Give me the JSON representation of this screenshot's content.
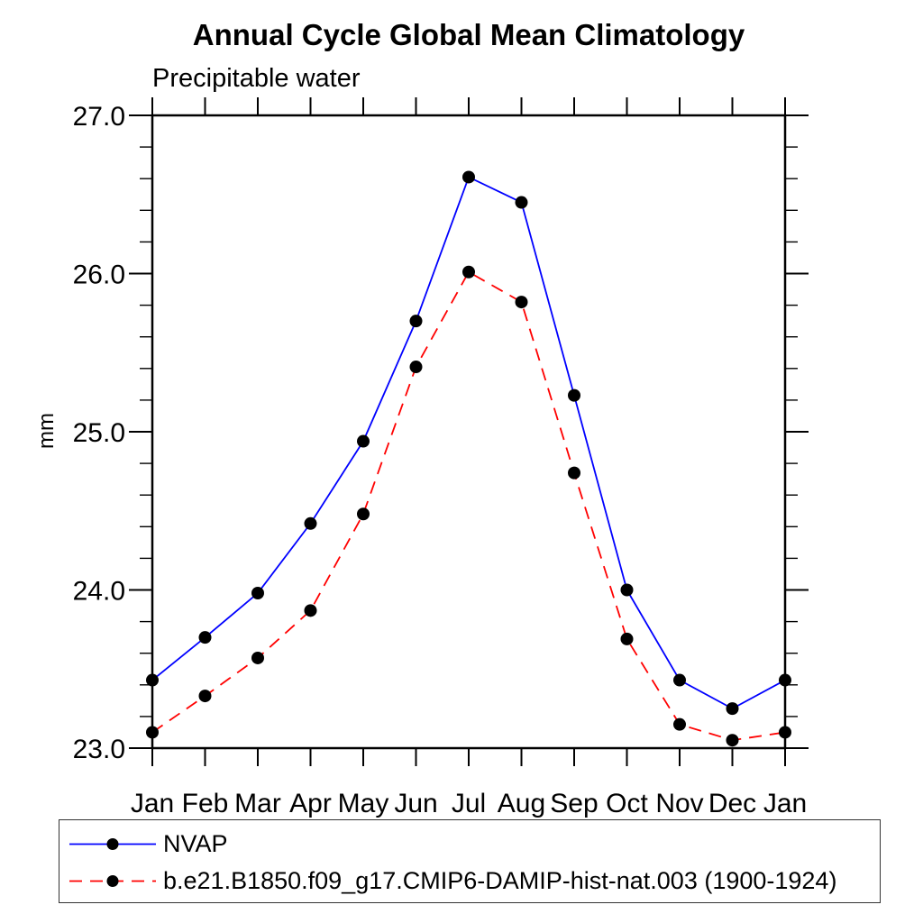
{
  "chart_data": {
    "type": "line",
    "title": "Annual Cycle Global Mean Climatology",
    "subtitle": "Precipitable water",
    "ylabel": "mm",
    "xlabel": "",
    "categories": [
      "Jan",
      "Feb",
      "Mar",
      "Apr",
      "May",
      "Jun",
      "Jul",
      "Aug",
      "Sep",
      "Oct",
      "Nov",
      "Dec",
      "Jan"
    ],
    "ylim": [
      23.0,
      27.0
    ],
    "y_major_ticks": [
      23.0,
      24.0,
      25.0,
      26.0,
      27.0
    ],
    "y_major_tick_labels": [
      "23.0",
      "24.0",
      "25.0",
      "26.0",
      "27.0"
    ],
    "y_minor_step": 0.2,
    "grid": false,
    "legend_position": "bottom-left-boxed",
    "series": [
      {
        "name": "NVAP",
        "color": "#0000ff",
        "style": "solid",
        "marker": "filled-circle",
        "marker_color": "#000000",
        "values": [
          23.43,
          23.7,
          23.98,
          24.42,
          24.94,
          25.7,
          26.61,
          26.45,
          25.23,
          24.0,
          23.43,
          23.25,
          23.43
        ]
      },
      {
        "name": "b.e21.B1850.f09_g17.CMIP6-DAMIP-hist-nat.003 (1900-1924)",
        "color": "#ff0000",
        "style": "dashed",
        "marker": "filled-circle",
        "marker_color": "#000000",
        "values": [
          23.1,
          23.33,
          23.57,
          23.87,
          24.48,
          25.41,
          26.01,
          25.82,
          24.74,
          23.69,
          23.15,
          23.05,
          23.1
        ]
      }
    ]
  },
  "legend": {
    "items": [
      {
        "label": "NVAP",
        "color": "#0000ff",
        "style": "solid",
        "marker_color": "#000000"
      },
      {
        "label": "b.e21.B1850.f09_g17.CMIP6-DAMIP-hist-nat.003 (1900-1924)",
        "color": "#ff0000",
        "style": "dashed",
        "marker_color": "#000000"
      }
    ]
  },
  "colors": {
    "axis": "#000000",
    "text": "#000000",
    "background": "#ffffff",
    "series_blue": "#0000ff",
    "series_red": "#ff0000",
    "marker": "#000000"
  }
}
